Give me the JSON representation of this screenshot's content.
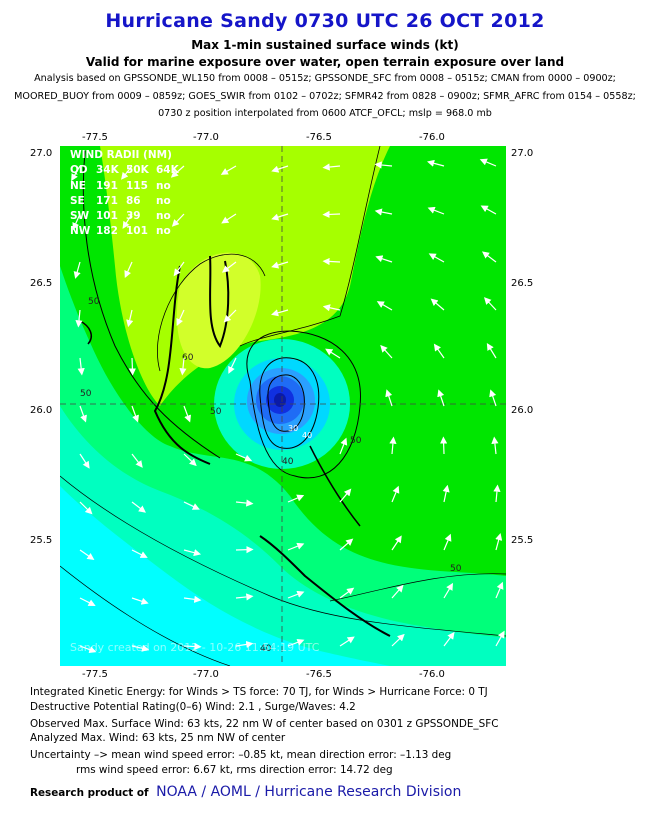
{
  "header": {
    "title": "Hurricane Sandy 0730 UTC 26 OCT 2012",
    "subtitle1": "Max 1-min sustained surface winds (kt)",
    "subtitle2": "Valid for marine exposure over water, open terrain exposure over land",
    "analysis_line1": "Analysis based on GPSSONDE_WL150 from 0008 – 0515z; GPSSONDE_SFC from 0008 – 0515z; CMAN from 0000 – 0900z;",
    "analysis_line2": "MOORED_BUOY from 0009 – 0859z; GOES_SWIR from 0102 – 0702z; SFMR42 from 0828 – 0900z; SFMR_AFRC from 0154 – 0558z;",
    "analysis_line3": "0730 z position interpolated from 0600 ATCF_OFCL; mslp = 968.0 mb"
  },
  "map": {
    "lon_ticks": [
      "-77.5",
      "-77.0",
      "-76.5",
      "-76.0"
    ],
    "lat_ticks": [
      "27.0",
      "26.5",
      "26.0",
      "25.5"
    ],
    "contour_labels": [
      "50",
      "60",
      "50",
      "50",
      "50",
      "40",
      "40",
      "50"
    ],
    "center_labels": [
      "30",
      "40"
    ],
    "wind_radii": {
      "title": "WIND RADII (NM)",
      "header": [
        "QD",
        "34K",
        "50K",
        "64K"
      ],
      "rows": [
        [
          "NE",
          "191",
          "115",
          "no"
        ],
        [
          "SE",
          "171",
          "86",
          "no"
        ],
        [
          "SW",
          "101",
          "39",
          "no"
        ],
        [
          "NW",
          "182",
          "101",
          "no"
        ]
      ]
    },
    "watermark": "Sandy  created on 2012 - 10-26  11:54:19 UTC",
    "colors": {
      "cyan": "#00ffff",
      "teal": "#00ffc0",
      "seafoam": "#00ff7a",
      "green": "#00e600",
      "lime": "#a6ff00",
      "yellowgreen": "#d2ff2a",
      "eye_blue": "#1030e0"
    }
  },
  "footer": {
    "ike": "Integrated Kinetic Energy: for Winds > TS force: 70 TJ, for Winds > Hurricane Force: 0 TJ",
    "dpr": "Destructive Potential Rating(0–6)   Wind: 2.1 , Surge/Waves: 4.2",
    "obs_max": "Observed Max. Surface Wind: 63 kts, 22 nm W of center based on 0301 z GPSSONDE_SFC",
    "analyzed_max": "Analyzed Max. Wind: 63 kts, 25 nm  NW of center",
    "uncertainty1": "Uncertainty –> mean wind speed error:  –0.85 kt, mean direction error:  –1.13 deg",
    "uncertainty2": "rms wind speed error: 6.67 kt, rms direction error: 14.72 deg",
    "research_label": "Research product of",
    "research_link": "NOAA  /  AOML  /  Hurricane Research Division"
  }
}
